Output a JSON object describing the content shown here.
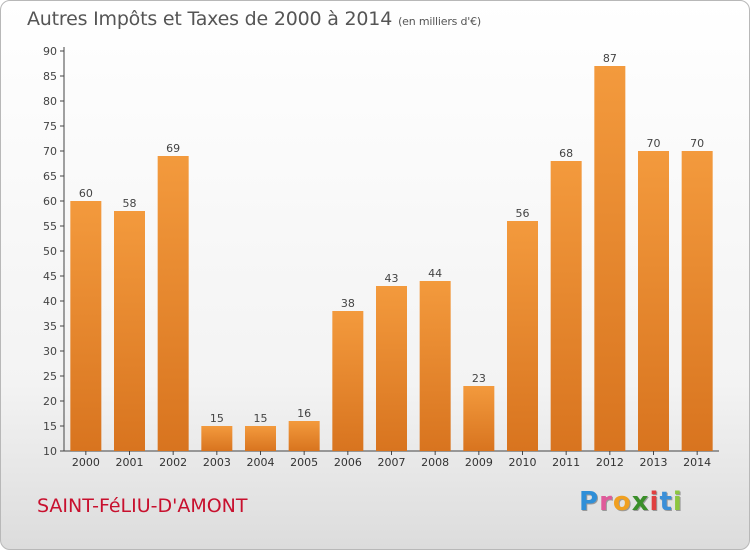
{
  "title": {
    "main": "Autres Impôts et Taxes de 2000 à 2014",
    "unit": "(en milliers d'€)"
  },
  "commune": "SAINT-FéLIU-D'AMONT",
  "logo": {
    "letters": [
      "P",
      "r",
      "o",
      "x",
      "i",
      "t",
      "i"
    ],
    "colors": [
      "#2f8fd8",
      "#e05a9a",
      "#f0a020",
      "#3a8f2a",
      "#e04040",
      "#3a8fd8",
      "#8dc63f"
    ]
  },
  "colors": {
    "bar": "#f39a3d",
    "bar_dark": "#d8741f",
    "axis": "#444444",
    "grid": "#d0d0d0"
  },
  "chart_data": {
    "type": "bar",
    "categories": [
      "2000",
      "2001",
      "2002",
      "2003",
      "2004",
      "2005",
      "2006",
      "2007",
      "2008",
      "2009",
      "2010",
      "2011",
      "2012",
      "2013",
      "2014"
    ],
    "values": [
      60,
      58,
      69,
      15,
      15,
      16,
      38,
      43,
      44,
      23,
      56,
      68,
      87,
      70,
      70
    ],
    "data_labels": [
      "60",
      "58",
      "69",
      "15",
      "15",
      "16",
      "38",
      "43",
      "44",
      "23",
      "56",
      "68",
      "87",
      "70",
      "70"
    ],
    "y_ticks": [
      "10",
      "15",
      "20",
      "25",
      "30",
      "35",
      "40",
      "45",
      "50",
      "55",
      "60",
      "65",
      "70",
      "75",
      "80",
      "85",
      "90"
    ],
    "ylim": [
      10,
      90
    ],
    "grid": false
  }
}
